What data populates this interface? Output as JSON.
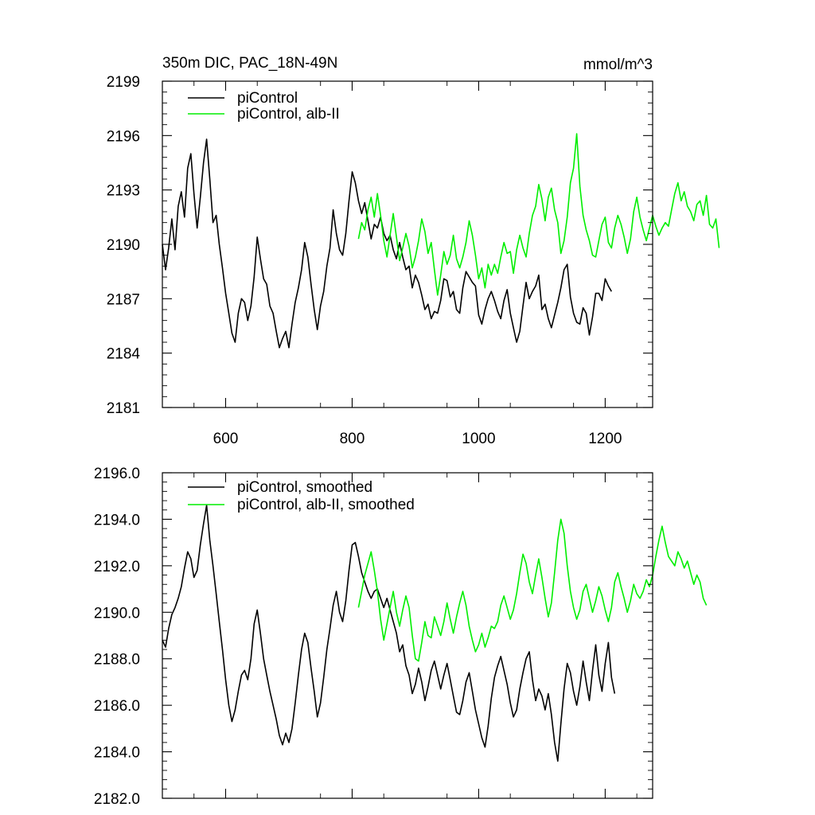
{
  "colors": {
    "picontrol": "#000000",
    "alb_ii": "#00ee00",
    "axis": "#000000",
    "background": "#ffffff"
  },
  "chart_data": [
    {
      "type": "line",
      "title": "350m DIC, PAC_18N-49N",
      "units": "mmol/m^3",
      "xlim": [
        500,
        1275
      ],
      "ylim": [
        2181,
        2199
      ],
      "xticks": [
        600,
        800,
        1000,
        1200
      ],
      "xtick_labels": [
        "600",
        "800",
        "1000",
        "1200"
      ],
      "yticks": [
        2181,
        2184,
        2187,
        2190,
        2193,
        2196,
        2199
      ],
      "ytick_labels": [
        "2181",
        "2184",
        "2187",
        "2190",
        "2193",
        "2196",
        "2199"
      ],
      "legend_position": "top-left",
      "series": [
        {
          "name": "piControl",
          "color": "#000000",
          "x_start": 500,
          "x_step": 5,
          "values": [
            2190.0,
            2188.6,
            2189.8,
            2191.4,
            2189.7,
            2192.1,
            2192.9,
            2191.5,
            2194.2,
            2195.0,
            2192.8,
            2190.9,
            2192.6,
            2194.5,
            2195.8,
            2193.6,
            2191.2,
            2191.6,
            2190.0,
            2188.7,
            2187.3,
            2186.2,
            2185.1,
            2184.6,
            2186.2,
            2187.0,
            2186.8,
            2185.8,
            2186.6,
            2188.2,
            2190.4,
            2189.2,
            2188.1,
            2187.8,
            2186.6,
            2186.2,
            2185.2,
            2184.3,
            2184.8,
            2185.2,
            2184.3,
            2185.6,
            2186.8,
            2187.6,
            2188.6,
            2190.1,
            2189.3,
            2187.8,
            2186.4,
            2185.3,
            2186.6,
            2187.4,
            2188.8,
            2189.8,
            2191.9,
            2190.6,
            2189.7,
            2189.4,
            2190.6,
            2192.4,
            2194.0,
            2193.4,
            2192.4,
            2191.7,
            2192.3,
            2191.3,
            2190.3,
            2191.1,
            2190.9,
            2191.5,
            2190.6,
            2190.2,
            2190.5,
            2189.7,
            2189.2,
            2190.1,
            2189.3,
            2188.6,
            2188.8,
            2187.6,
            2188.3,
            2187.9,
            2187.2,
            2186.4,
            2186.7,
            2185.9,
            2186.3,
            2186.2,
            2186.9,
            2188.1,
            2188.0,
            2187.1,
            2187.4,
            2186.4,
            2186.2,
            2187.6,
            2188.5,
            2188.2,
            2187.9,
            2187.7,
            2186.1,
            2185.6,
            2186.4,
            2187.0,
            2187.4,
            2186.9,
            2186.3,
            2185.9,
            2186.9,
            2187.5,
            2186.2,
            2185.4,
            2184.6,
            2185.2,
            2186.6,
            2187.9,
            2187.0,
            2187.4,
            2187.7,
            2188.3,
            2186.4,
            2186.7,
            2185.9,
            2185.4,
            2186.1,
            2186.8,
            2187.6,
            2188.6,
            2188.9,
            2187.1,
            2186.2,
            2185.7,
            2185.6,
            2186.5,
            2186.2,
            2185.0,
            2186.0,
            2187.3,
            2187.3,
            2186.9,
            2188.1,
            2187.7,
            2187.4
          ]
        },
        {
          "name": "piControl, alb-II",
          "color": "#00ee00",
          "x_start": 810,
          "x_step": 5,
          "values": [
            2190.3,
            2191.2,
            2190.8,
            2191.9,
            2192.6,
            2191.5,
            2192.8,
            2191.6,
            2190.2,
            2189.3,
            2190.5,
            2191.7,
            2190.4,
            2189.1,
            2189.8,
            2190.6,
            2189.9,
            2188.7,
            2189.3,
            2190.2,
            2191.4,
            2190.7,
            2189.5,
            2190.1,
            2188.6,
            2187.2,
            2188.3,
            2189.6,
            2188.9,
            2189.4,
            2190.5,
            2189.2,
            2188.7,
            2189.3,
            2190.1,
            2191.3,
            2190.5,
            2189.4,
            2188.1,
            2188.7,
            2187.6,
            2188.9,
            2188.3,
            2188.9,
            2188.4,
            2189.3,
            2190.1,
            2189.5,
            2189.6,
            2188.4,
            2189.7,
            2190.5,
            2189.8,
            2189.3,
            2190.6,
            2191.6,
            2192.1,
            2193.3,
            2192.5,
            2191.3,
            2192.6,
            2193.1,
            2191.9,
            2191.2,
            2189.5,
            2190.2,
            2191.5,
            2193.4,
            2194.2,
            2196.1,
            2193.2,
            2191.6,
            2190.8,
            2190.2,
            2189.4,
            2189.3,
            2190.2,
            2191.1,
            2191.5,
            2190.1,
            2189.8,
            2190.9,
            2191.6,
            2191.1,
            2190.4,
            2189.5,
            2190.3,
            2191.8,
            2192.6,
            2191.5,
            2190.8,
            2190.2,
            2190.9,
            2191.6,
            2191.0,
            2190.5,
            2190.9,
            2191.2,
            2191.0,
            2191.9,
            2192.8,
            2193.4,
            2192.4,
            2192.9,
            2192.1,
            2191.8,
            2191.3,
            2192.2,
            2192.4,
            2191.6,
            2192.7,
            2191.1,
            2190.9,
            2191.4,
            2189.8
          ]
        }
      ]
    },
    {
      "type": "line",
      "title": "",
      "xlim": [
        500,
        1275
      ],
      "ylim": [
        2182.0,
        2196.0
      ],
      "xticks": [
        600,
        800,
        1000,
        1200
      ],
      "yticks": [
        2182.0,
        2184.0,
        2186.0,
        2188.0,
        2190.0,
        2192.0,
        2194.0,
        2196.0
      ],
      "ytick_labels": [
        "2182.0",
        "2184.0",
        "2186.0",
        "2188.0",
        "2190.0",
        "2192.0",
        "2194.0",
        "2196.0"
      ],
      "legend_position": "top-left",
      "series": [
        {
          "name": "piControl, smoothed",
          "color": "#000000",
          "x_start": 500,
          "x_step": 5,
          "values": [
            2188.8,
            2188.5,
            2189.3,
            2189.9,
            2190.2,
            2190.6,
            2191.1,
            2191.9,
            2192.6,
            2192.3,
            2191.5,
            2191.8,
            2192.9,
            2193.8,
            2194.6,
            2193.1,
            2192.0,
            2190.8,
            2189.6,
            2188.4,
            2187.1,
            2186.0,
            2185.3,
            2185.8,
            2186.6,
            2187.3,
            2187.5,
            2187.1,
            2188.0,
            2189.5,
            2190.1,
            2189.1,
            2188.0,
            2187.3,
            2186.6,
            2186.0,
            2185.4,
            2184.7,
            2184.3,
            2184.8,
            2184.4,
            2185.0,
            2186.1,
            2187.3,
            2188.4,
            2189.1,
            2188.7,
            2187.6,
            2186.6,
            2185.5,
            2186.1,
            2187.2,
            2188.4,
            2189.3,
            2190.3,
            2190.9,
            2190.0,
            2189.6,
            2190.5,
            2191.8,
            2192.9,
            2193.0,
            2192.4,
            2191.7,
            2191.3,
            2190.9,
            2190.6,
            2190.9,
            2191.0,
            2190.6,
            2190.2,
            2190.6,
            2190.1,
            2189.6,
            2189.1,
            2188.3,
            2188.6,
            2187.7,
            2187.3,
            2186.5,
            2186.9,
            2187.6,
            2187.0,
            2186.2,
            2186.8,
            2187.5,
            2187.9,
            2187.3,
            2186.7,
            2187.3,
            2187.8,
            2187.1,
            2186.4,
            2185.7,
            2185.6,
            2186.2,
            2187.0,
            2187.4,
            2186.6,
            2185.8,
            2185.2,
            2184.6,
            2184.2,
            2185.1,
            2186.3,
            2187.2,
            2187.7,
            2188.1,
            2187.5,
            2186.9,
            2186.1,
            2185.5,
            2185.8,
            2186.7,
            2187.4,
            2188.0,
            2188.3,
            2187.1,
            2186.2,
            2186.7,
            2186.4,
            2185.8,
            2186.5,
            2185.6,
            2184.4,
            2183.6,
            2185.2,
            2186.7,
            2187.8,
            2187.4,
            2186.6,
            2186.0,
            2186.8,
            2187.9,
            2187.0,
            2186.2,
            2187.5,
            2188.6,
            2187.3,
            2186.6,
            2187.8,
            2188.7,
            2187.2,
            2186.5
          ]
        },
        {
          "name": "piControl, alb-II, smoothed",
          "color": "#00ee00",
          "x_start": 810,
          "x_step": 5,
          "values": [
            2190.2,
            2190.9,
            2191.6,
            2192.1,
            2192.6,
            2191.8,
            2190.9,
            2189.7,
            2188.8,
            2189.5,
            2190.2,
            2190.9,
            2190.0,
            2189.4,
            2190.1,
            2190.7,
            2190.2,
            2189.0,
            2188.0,
            2187.9,
            2188.7,
            2189.6,
            2189.0,
            2188.9,
            2189.8,
            2189.4,
            2189.0,
            2189.6,
            2190.4,
            2189.7,
            2189.1,
            2189.8,
            2190.4,
            2190.9,
            2190.3,
            2189.4,
            2188.8,
            2188.3,
            2188.6,
            2189.1,
            2188.5,
            2188.9,
            2189.4,
            2189.3,
            2189.6,
            2190.3,
            2190.7,
            2190.2,
            2189.7,
            2190.1,
            2190.8,
            2191.7,
            2192.5,
            2192.1,
            2191.3,
            2190.8,
            2191.6,
            2192.3,
            2191.5,
            2190.6,
            2189.8,
            2190.4,
            2191.7,
            2193.1,
            2194.0,
            2193.4,
            2192.0,
            2190.9,
            2190.2,
            2189.7,
            2190.1,
            2190.9,
            2191.2,
            2190.6,
            2190.0,
            2190.5,
            2191.1,
            2190.7,
            2190.1,
            2189.6,
            2190.2,
            2191.3,
            2191.7,
            2191.1,
            2190.6,
            2190.0,
            2190.5,
            2191.2,
            2190.8,
            2190.6,
            2190.9,
            2191.4,
            2191.1,
            2191.6,
            2192.4,
            2193.1,
            2193.7,
            2193.0,
            2192.4,
            2192.2,
            2192.0,
            2192.6,
            2192.3,
            2191.9,
            2192.2,
            2191.7,
            2191.2,
            2191.6,
            2191.3,
            2190.6,
            2190.3
          ]
        }
      ]
    }
  ]
}
